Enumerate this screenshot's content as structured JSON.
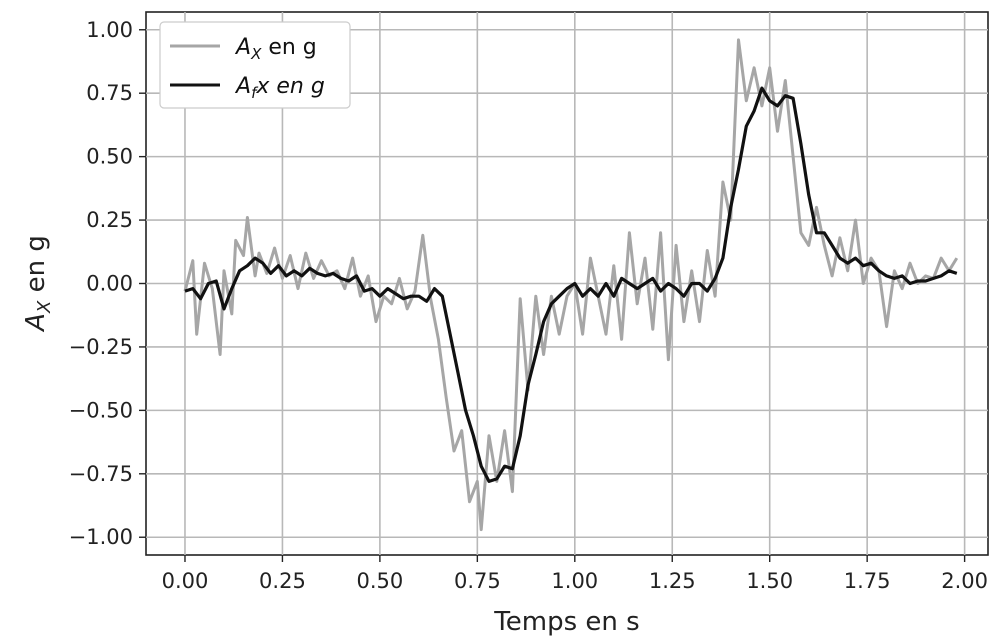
{
  "chart_data": {
    "type": "line",
    "xlabel_main": "Temps en s",
    "ylabel_main": "A",
    "ylabel_sub": "X",
    "ylabel_rest": " en g",
    "xlim": [
      -0.1,
      2.06
    ],
    "ylim": [
      -1.07,
      1.07
    ],
    "x_ticks": [
      0.0,
      0.25,
      0.5,
      0.75,
      1.0,
      1.25,
      1.5,
      1.75,
      2.0
    ],
    "x_tick_labels": [
      "0.00",
      "0.25",
      "0.50",
      "0.75",
      "1.00",
      "1.25",
      "1.50",
      "1.75",
      "2.00"
    ],
    "y_ticks": [
      1.0,
      0.75,
      0.5,
      0.25,
      0.0,
      -0.25,
      -0.5,
      -0.75,
      -1.0
    ],
    "y_tick_labels": [
      "1.00",
      "0.75",
      "0.50",
      "0.25",
      "0.00",
      "−0.25",
      "−0.50",
      "−0.75",
      "−1.00"
    ],
    "grid": true,
    "legend_position": "top-left",
    "series": [
      {
        "legend_main": "A",
        "legend_sub": "X",
        "legend_rest": " en g",
        "color": "#a6a6a6",
        "x": [
          0.0,
          0.02,
          0.03,
          0.05,
          0.07,
          0.09,
          0.1,
          0.12,
          0.13,
          0.15,
          0.16,
          0.18,
          0.19,
          0.21,
          0.23,
          0.25,
          0.27,
          0.29,
          0.31,
          0.33,
          0.35,
          0.37,
          0.39,
          0.41,
          0.43,
          0.45,
          0.47,
          0.49,
          0.51,
          0.53,
          0.55,
          0.57,
          0.59,
          0.61,
          0.63,
          0.65,
          0.67,
          0.69,
          0.71,
          0.73,
          0.75,
          0.76,
          0.78,
          0.8,
          0.82,
          0.84,
          0.86,
          0.88,
          0.9,
          0.92,
          0.94,
          0.96,
          0.98,
          1.0,
          1.02,
          1.04,
          1.06,
          1.08,
          1.1,
          1.12,
          1.14,
          1.16,
          1.18,
          1.2,
          1.22,
          1.24,
          1.26,
          1.28,
          1.3,
          1.32,
          1.34,
          1.36,
          1.38,
          1.4,
          1.42,
          1.44,
          1.46,
          1.48,
          1.5,
          1.52,
          1.54,
          1.56,
          1.58,
          1.6,
          1.62,
          1.64,
          1.66,
          1.68,
          1.7,
          1.72,
          1.74,
          1.76,
          1.78,
          1.8,
          1.82,
          1.84,
          1.86,
          1.88,
          1.9,
          1.92,
          1.94,
          1.96,
          1.98
        ],
        "y": [
          -0.03,
          0.09,
          -0.2,
          0.08,
          -0.02,
          -0.28,
          0.05,
          -0.12,
          0.17,
          0.11,
          0.26,
          0.03,
          0.12,
          0.04,
          0.14,
          0.02,
          0.11,
          -0.02,
          0.12,
          0.02,
          0.09,
          0.03,
          0.05,
          -0.02,
          0.1,
          -0.05,
          0.03,
          -0.15,
          -0.05,
          -0.08,
          0.02,
          -0.1,
          -0.03,
          0.19,
          -0.06,
          -0.22,
          -0.45,
          -0.66,
          -0.58,
          -0.86,
          -0.78,
          -0.97,
          -0.6,
          -0.78,
          -0.58,
          -0.82,
          -0.06,
          -0.42,
          -0.05,
          -0.28,
          -0.05,
          -0.2,
          -0.05,
          0.0,
          -0.2,
          0.1,
          -0.05,
          -0.2,
          0.07,
          -0.22,
          0.2,
          -0.08,
          0.1,
          -0.18,
          0.2,
          -0.3,
          0.15,
          -0.15,
          0.05,
          -0.15,
          0.13,
          -0.05,
          0.4,
          0.25,
          0.96,
          0.72,
          0.85,
          0.7,
          0.85,
          0.6,
          0.8,
          0.5,
          0.2,
          0.15,
          0.3,
          0.15,
          0.03,
          0.18,
          0.05,
          0.25,
          0.0,
          0.1,
          0.05,
          -0.17,
          0.05,
          -0.02,
          0.08,
          0.0,
          0.03,
          0.02,
          0.1,
          0.05,
          0.1
        ]
      },
      {
        "legend_main": "A",
        "legend_sub": "f",
        "legend_rest": "x en g",
        "color": "#111111",
        "x": [
          0.0,
          0.02,
          0.04,
          0.06,
          0.08,
          0.1,
          0.12,
          0.14,
          0.16,
          0.18,
          0.2,
          0.22,
          0.24,
          0.26,
          0.28,
          0.3,
          0.32,
          0.34,
          0.36,
          0.38,
          0.4,
          0.42,
          0.44,
          0.46,
          0.48,
          0.5,
          0.52,
          0.54,
          0.56,
          0.58,
          0.6,
          0.62,
          0.64,
          0.66,
          0.68,
          0.7,
          0.72,
          0.74,
          0.76,
          0.78,
          0.8,
          0.82,
          0.84,
          0.86,
          0.88,
          0.9,
          0.92,
          0.94,
          0.96,
          0.98,
          1.0,
          1.02,
          1.04,
          1.06,
          1.08,
          1.1,
          1.12,
          1.14,
          1.16,
          1.18,
          1.2,
          1.22,
          1.24,
          1.26,
          1.28,
          1.3,
          1.32,
          1.34,
          1.36,
          1.38,
          1.4,
          1.42,
          1.44,
          1.46,
          1.48,
          1.5,
          1.52,
          1.54,
          1.56,
          1.58,
          1.6,
          1.62,
          1.64,
          1.66,
          1.68,
          1.7,
          1.72,
          1.74,
          1.76,
          1.78,
          1.8,
          1.82,
          1.84,
          1.86,
          1.88,
          1.9,
          1.92,
          1.94,
          1.96,
          1.98
        ],
        "y": [
          -0.03,
          -0.02,
          -0.06,
          0.0,
          0.01,
          -0.1,
          -0.02,
          0.05,
          0.07,
          0.1,
          0.08,
          0.04,
          0.07,
          0.03,
          0.05,
          0.03,
          0.06,
          0.04,
          0.03,
          0.04,
          0.02,
          0.01,
          0.03,
          -0.03,
          -0.02,
          -0.05,
          -0.02,
          -0.04,
          -0.06,
          -0.05,
          -0.05,
          -0.07,
          -0.02,
          -0.05,
          -0.2,
          -0.35,
          -0.5,
          -0.6,
          -0.72,
          -0.78,
          -0.77,
          -0.72,
          -0.73,
          -0.6,
          -0.4,
          -0.28,
          -0.15,
          -0.08,
          -0.05,
          -0.02,
          0.0,
          -0.05,
          -0.02,
          -0.05,
          0.0,
          -0.05,
          0.02,
          0.0,
          -0.02,
          0.0,
          0.02,
          -0.03,
          0.0,
          -0.02,
          -0.05,
          0.0,
          0.0,
          -0.03,
          0.02,
          0.1,
          0.3,
          0.45,
          0.62,
          0.68,
          0.77,
          0.72,
          0.7,
          0.74,
          0.73,
          0.55,
          0.35,
          0.2,
          0.2,
          0.15,
          0.1,
          0.08,
          0.1,
          0.07,
          0.08,
          0.05,
          0.03,
          0.02,
          0.03,
          0.0,
          0.01,
          0.01,
          0.02,
          0.03,
          0.05,
          0.04
        ]
      }
    ]
  }
}
